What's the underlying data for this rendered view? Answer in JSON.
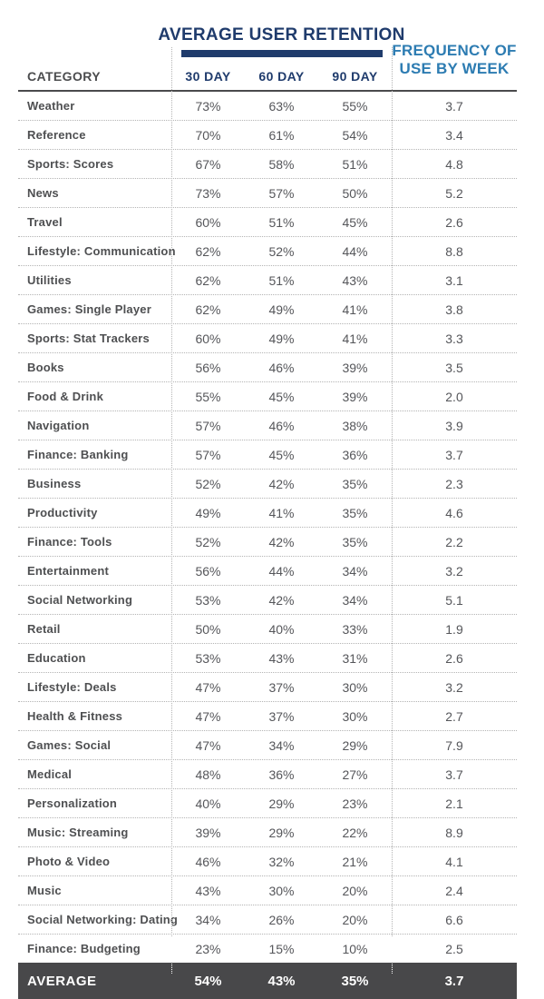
{
  "header": {
    "title": "AVERAGE USER RETENTION",
    "frequency_line1": "FREQUENCY OF",
    "frequency_line2": "USE BY WEEK",
    "category_label": "CATEGORY",
    "day30_label": "30 DAY",
    "day60_label": "60 DAY",
    "day90_label": "90 DAY"
  },
  "colors": {
    "navy": "#1f3b6c",
    "blue": "#2d7cb2",
    "dark_row": "#48484a",
    "divider": "#b4b4b4",
    "text_dark": "#4b4c4e"
  },
  "chart_data": {
    "type": "table",
    "title": "AVERAGE USER RETENTION",
    "columns": [
      "CATEGORY",
      "30 DAY",
      "60 DAY",
      "90 DAY",
      "FREQUENCY OF USE BY WEEK"
    ],
    "rows": [
      {
        "category": "Weather",
        "day30": "73%",
        "day60": "63%",
        "day90": "55%",
        "frequency": "3.7"
      },
      {
        "category": "Reference",
        "day30": "70%",
        "day60": "61%",
        "day90": "54%",
        "frequency": "3.4"
      },
      {
        "category": "Sports: Scores",
        "day30": "67%",
        "day60": "58%",
        "day90": "51%",
        "frequency": "4.8"
      },
      {
        "category": "News",
        "day30": "73%",
        "day60": "57%",
        "day90": "50%",
        "frequency": "5.2"
      },
      {
        "category": "Travel",
        "day30": "60%",
        "day60": "51%",
        "day90": "45%",
        "frequency": "2.6"
      },
      {
        "category": "Lifestyle: Communication",
        "day30": "62%",
        "day60": "52%",
        "day90": "44%",
        "frequency": "8.8"
      },
      {
        "category": "Utilities",
        "day30": "62%",
        "day60": "51%",
        "day90": "43%",
        "frequency": "3.1"
      },
      {
        "category": "Games: Single Player",
        "day30": "62%",
        "day60": "49%",
        "day90": "41%",
        "frequency": "3.8"
      },
      {
        "category": "Sports: Stat Trackers",
        "day30": "60%",
        "day60": "49%",
        "day90": "41%",
        "frequency": "3.3"
      },
      {
        "category": "Books",
        "day30": "56%",
        "day60": "46%",
        "day90": "39%",
        "frequency": "3.5"
      },
      {
        "category": "Food & Drink",
        "day30": "55%",
        "day60": "45%",
        "day90": "39%",
        "frequency": "2.0"
      },
      {
        "category": "Navigation",
        "day30": "57%",
        "day60": "46%",
        "day90": "38%",
        "frequency": "3.9"
      },
      {
        "category": "Finance: Banking",
        "day30": "57%",
        "day60": "45%",
        "day90": "36%",
        "frequency": "3.7"
      },
      {
        "category": "Business",
        "day30": "52%",
        "day60": "42%",
        "day90": "35%",
        "frequency": "2.3"
      },
      {
        "category": "Productivity",
        "day30": "49%",
        "day60": "41%",
        "day90": "35%",
        "frequency": "4.6"
      },
      {
        "category": "Finance: Tools",
        "day30": "52%",
        "day60": "42%",
        "day90": "35%",
        "frequency": "2.2"
      },
      {
        "category": "Entertainment",
        "day30": "56%",
        "day60": "44%",
        "day90": "34%",
        "frequency": "3.2"
      },
      {
        "category": "Social Networking",
        "day30": "53%",
        "day60": "42%",
        "day90": "34%",
        "frequency": "5.1"
      },
      {
        "category": "Retail",
        "day30": "50%",
        "day60": "40%",
        "day90": "33%",
        "frequency": "1.9"
      },
      {
        "category": "Education",
        "day30": "53%",
        "day60": "43%",
        "day90": "31%",
        "frequency": "2.6"
      },
      {
        "category": "Lifestyle: Deals",
        "day30": "47%",
        "day60": "37%",
        "day90": "30%",
        "frequency": "3.2"
      },
      {
        "category": "Health & Fitness",
        "day30": "47%",
        "day60": "37%",
        "day90": "30%",
        "frequency": "2.7"
      },
      {
        "category": "Games: Social",
        "day30": "47%",
        "day60": "34%",
        "day90": "29%",
        "frequency": "7.9"
      },
      {
        "category": "Medical",
        "day30": "48%",
        "day60": "36%",
        "day90": "27%",
        "frequency": "3.7"
      },
      {
        "category": "Personalization",
        "day30": "40%",
        "day60": "29%",
        "day90": "23%",
        "frequency": "2.1"
      },
      {
        "category": "Music: Streaming",
        "day30": "39%",
        "day60": "29%",
        "day90": "22%",
        "frequency": "8.9"
      },
      {
        "category": "Photo & Video",
        "day30": "46%",
        "day60": "32%",
        "day90": "21%",
        "frequency": "4.1"
      },
      {
        "category": "Music",
        "day30": "43%",
        "day60": "30%",
        "day90": "20%",
        "frequency": "2.4"
      },
      {
        "category": "Social Networking: Dating",
        "day30": "34%",
        "day60": "26%",
        "day90": "20%",
        "frequency": "6.6"
      },
      {
        "category": "Finance: Budgeting",
        "day30": "23%",
        "day60": "15%",
        "day90": "10%",
        "frequency": "2.5"
      }
    ],
    "average": {
      "category": "AVERAGE",
      "day30": "54%",
      "day60": "43%",
      "day90": "35%",
      "frequency": "3.7"
    }
  }
}
